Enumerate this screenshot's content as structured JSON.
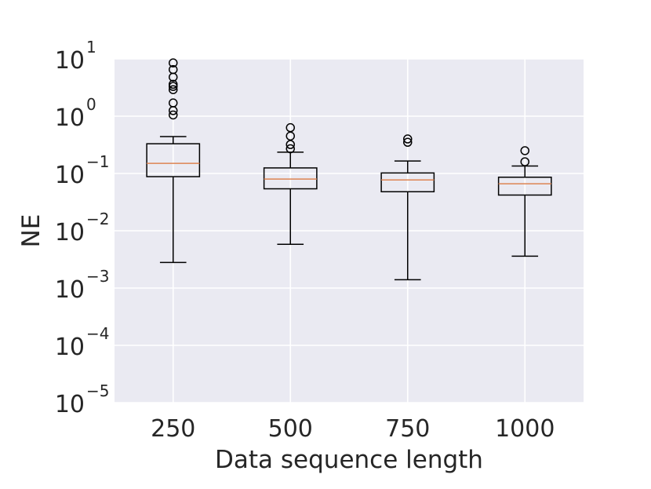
{
  "chart_data": {
    "type": "box",
    "xlabel": "Data sequence length",
    "ylabel": "NE",
    "yscale": "log",
    "ylim": [
      1e-05,
      10
    ],
    "yticks": [
      {
        "base": "10",
        "exp": "1"
      },
      {
        "base": "10",
        "exp": "0"
      },
      {
        "base": "10",
        "exp": "−1"
      },
      {
        "base": "10",
        "exp": "−2"
      },
      {
        "base": "10",
        "exp": "−3"
      },
      {
        "base": "10",
        "exp": "−4"
      },
      {
        "base": "10",
        "exp": "−5"
      }
    ],
    "categories": [
      "250",
      "500",
      "750",
      "1000"
    ],
    "boxes": [
      {
        "whisker_low": 0.0028,
        "q1": 0.088,
        "median": 0.15,
        "q3": 0.33,
        "whisker_high": 0.44,
        "outliers": [
          1.05,
          1.25,
          1.7,
          2.9,
          3.3,
          3.6,
          4.8,
          6.5,
          8.5
        ]
      },
      {
        "whisker_low": 0.0058,
        "q1": 0.054,
        "median": 0.08,
        "q3": 0.125,
        "whisker_high": 0.235,
        "outliers": [
          0.27,
          0.32,
          0.45,
          0.63
        ]
      },
      {
        "whisker_low": 0.0014,
        "q1": 0.048,
        "median": 0.077,
        "q3": 0.102,
        "whisker_high": 0.165,
        "outliers": [
          0.35,
          0.4
        ]
      },
      {
        "whisker_low": 0.0036,
        "q1": 0.042,
        "median": 0.066,
        "q3": 0.086,
        "whisker_high": 0.135,
        "outliers": [
          0.16,
          0.25
        ]
      }
    ],
    "grid": true,
    "colors": {
      "background": "#EAEAF2",
      "grid": "#FFFFFF",
      "box": "#000000",
      "median": "#DD8452"
    }
  }
}
